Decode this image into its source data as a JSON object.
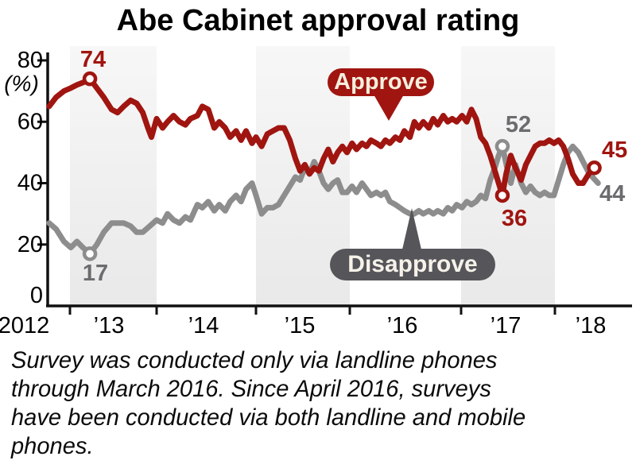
{
  "title": "Abe Cabinet approval rating",
  "y_axis": {
    "unit_label": "(%)",
    "tick_values": [
      80,
      60,
      40,
      20,
      0
    ]
  },
  "x_axis": {
    "labels": [
      "2012",
      "’13",
      "’14",
      "’15",
      "’16",
      "’17",
      "’18"
    ]
  },
  "footnote_lines": [
    "Survey was conducted only via landline phones",
    "through March 2016. Since April 2016, surveys",
    "have been conducted via both landline and mobile",
    "phones."
  ],
  "colors": {
    "approve": "#a01510",
    "disapprove": "#8d8d8d",
    "approve_annotation": "#a01510",
    "disapprove_annotation": "#6c6c70",
    "approve_balloon_bg": "#a01510",
    "approve_balloon_text": "#f6efdd",
    "disapprove_balloon_bg": "#55555a",
    "disapprove_balloon_text": "#f6f2e9",
    "axis": "#111111",
    "band_top": "#f7f7f7",
    "band_bottom": "#e9e9e9"
  },
  "chart_data": {
    "type": "line",
    "x_unit": "year",
    "y_unit": "percent",
    "ylim": [
      0,
      80
    ],
    "xlim": [
      2012.7,
      2018.6
    ],
    "grid": false,
    "shaded_year_bands": [
      [
        2013,
        2014
      ],
      [
        2015,
        2016
      ],
      [
        2017,
        2018
      ]
    ],
    "series": [
      {
        "name": "Approve",
        "color_key": "approve",
        "points": [
          [
            2012.76,
            65
          ],
          [
            2012.84,
            68
          ],
          [
            2012.93,
            70
          ],
          [
            2013.01,
            71
          ],
          [
            2013.08,
            72
          ],
          [
            2013.17,
            73
          ],
          [
            2013.23,
            74
          ],
          [
            2013.31,
            71
          ],
          [
            2013.39,
            68
          ],
          [
            2013.48,
            64
          ],
          [
            2013.55,
            63
          ],
          [
            2013.62,
            65
          ],
          [
            2013.7,
            67
          ],
          [
            2013.77,
            66
          ],
          [
            2013.84,
            63
          ],
          [
            2013.9,
            58
          ],
          [
            2013.94,
            55
          ],
          [
            2014.0,
            61
          ],
          [
            2014.06,
            58
          ],
          [
            2014.11,
            60
          ],
          [
            2014.17,
            62
          ],
          [
            2014.23,
            60
          ],
          [
            2014.29,
            59
          ],
          [
            2014.34,
            61
          ],
          [
            2014.41,
            62
          ],
          [
            2014.46,
            65
          ],
          [
            2014.52,
            64
          ],
          [
            2014.58,
            58
          ],
          [
            2014.63,
            60
          ],
          [
            2014.69,
            58
          ],
          [
            2014.74,
            55
          ],
          [
            2014.8,
            57
          ],
          [
            2014.85,
            54
          ],
          [
            2014.9,
            57
          ],
          [
            2014.96,
            53
          ],
          [
            2015.0,
            55
          ],
          [
            2015.06,
            52
          ],
          [
            2015.12,
            56
          ],
          [
            2015.18,
            57
          ],
          [
            2015.24,
            58
          ],
          [
            2015.3,
            58
          ],
          [
            2015.36,
            54
          ],
          [
            2015.42,
            48
          ],
          [
            2015.47,
            44
          ],
          [
            2015.52,
            46
          ],
          [
            2015.57,
            43
          ],
          [
            2015.62,
            45
          ],
          [
            2015.67,
            44
          ],
          [
            2015.72,
            48
          ],
          [
            2015.77,
            51
          ],
          [
            2015.82,
            47
          ],
          [
            2015.87,
            50
          ],
          [
            2015.92,
            52
          ],
          [
            2015.97,
            50
          ],
          [
            2016.02,
            53
          ],
          [
            2016.06,
            51
          ],
          [
            2016.11,
            53
          ],
          [
            2016.15,
            52
          ],
          [
            2016.19,
            54
          ],
          [
            2016.24,
            53
          ],
          [
            2016.28,
            52
          ],
          [
            2016.32,
            54
          ],
          [
            2016.36,
            53
          ],
          [
            2016.41,
            55
          ],
          [
            2016.45,
            54
          ],
          [
            2016.49,
            57
          ],
          [
            2016.54,
            55
          ],
          [
            2016.58,
            60
          ],
          [
            2016.62,
            58
          ],
          [
            2016.66,
            60
          ],
          [
            2016.71,
            58
          ],
          [
            2016.75,
            61
          ],
          [
            2016.79,
            59
          ],
          [
            2016.84,
            62
          ],
          [
            2016.88,
            60
          ],
          [
            2016.92,
            61
          ],
          [
            2016.96,
            60
          ],
          [
            2017.01,
            62
          ],
          [
            2017.06,
            60
          ],
          [
            2017.11,
            64
          ],
          [
            2017.16,
            61
          ],
          [
            2017.21,
            55
          ],
          [
            2017.26,
            53
          ],
          [
            2017.31,
            49
          ],
          [
            2017.36,
            44
          ],
          [
            2017.4,
            40
          ],
          [
            2017.44,
            36
          ],
          [
            2017.48,
            43
          ],
          [
            2017.53,
            49
          ],
          [
            2017.58,
            45
          ],
          [
            2017.64,
            41
          ],
          [
            2017.69,
            46
          ],
          [
            2017.74,
            49
          ],
          [
            2017.79,
            52
          ],
          [
            2017.84,
            53
          ],
          [
            2017.89,
            53
          ],
          [
            2017.94,
            54
          ],
          [
            2017.99,
            53
          ],
          [
            2018.04,
            54
          ],
          [
            2018.09,
            52
          ],
          [
            2018.14,
            48
          ],
          [
            2018.19,
            43
          ],
          [
            2018.25,
            40
          ],
          [
            2018.3,
            40
          ],
          [
            2018.36,
            43
          ],
          [
            2018.42,
            45
          ]
        ]
      },
      {
        "name": "Disapprove",
        "color_key": "disapprove",
        "points": [
          [
            2012.76,
            27
          ],
          [
            2012.84,
            25
          ],
          [
            2012.93,
            21
          ],
          [
            2013.01,
            19
          ],
          [
            2013.08,
            21
          ],
          [
            2013.15,
            19
          ],
          [
            2013.23,
            17
          ],
          [
            2013.31,
            20
          ],
          [
            2013.39,
            24
          ],
          [
            2013.48,
            27
          ],
          [
            2013.55,
            27
          ],
          [
            2013.62,
            27
          ],
          [
            2013.7,
            26
          ],
          [
            2013.77,
            24
          ],
          [
            2013.84,
            24
          ],
          [
            2013.92,
            26
          ],
          [
            2014.0,
            28
          ],
          [
            2014.06,
            27
          ],
          [
            2014.11,
            30
          ],
          [
            2014.17,
            28
          ],
          [
            2014.23,
            27
          ],
          [
            2014.29,
            29
          ],
          [
            2014.34,
            28
          ],
          [
            2014.41,
            33
          ],
          [
            2014.46,
            32
          ],
          [
            2014.52,
            34
          ],
          [
            2014.58,
            31
          ],
          [
            2014.63,
            33
          ],
          [
            2014.69,
            31
          ],
          [
            2014.74,
            34
          ],
          [
            2014.8,
            36
          ],
          [
            2014.85,
            34
          ],
          [
            2014.9,
            38
          ],
          [
            2014.96,
            40
          ],
          [
            2015.0,
            36
          ],
          [
            2015.06,
            30
          ],
          [
            2015.12,
            32
          ],
          [
            2015.18,
            32
          ],
          [
            2015.24,
            33
          ],
          [
            2015.3,
            36
          ],
          [
            2015.36,
            39
          ],
          [
            2015.42,
            42
          ],
          [
            2015.47,
            41
          ],
          [
            2015.52,
            45
          ],
          [
            2015.57,
            43
          ],
          [
            2015.62,
            47
          ],
          [
            2015.67,
            44
          ],
          [
            2015.72,
            40
          ],
          [
            2015.77,
            38
          ],
          [
            2015.82,
            40
          ],
          [
            2015.87,
            41
          ],
          [
            2015.92,
            37
          ],
          [
            2015.97,
            37
          ],
          [
            2016.02,
            39
          ],
          [
            2016.06,
            37
          ],
          [
            2016.11,
            40
          ],
          [
            2016.15,
            38
          ],
          [
            2016.19,
            36
          ],
          [
            2016.24,
            37
          ],
          [
            2016.28,
            36
          ],
          [
            2016.32,
            37
          ],
          [
            2016.36,
            34
          ],
          [
            2016.41,
            33
          ],
          [
            2016.45,
            32
          ],
          [
            2016.49,
            31
          ],
          [
            2016.54,
            30
          ],
          [
            2016.58,
            30
          ],
          [
            2016.62,
            31
          ],
          [
            2016.66,
            30
          ],
          [
            2016.71,
            31
          ],
          [
            2016.75,
            30
          ],
          [
            2016.79,
            31
          ],
          [
            2016.84,
            30
          ],
          [
            2016.88,
            32
          ],
          [
            2016.92,
            31
          ],
          [
            2016.96,
            33
          ],
          [
            2017.01,
            32
          ],
          [
            2017.06,
            34
          ],
          [
            2017.11,
            33
          ],
          [
            2017.16,
            34
          ],
          [
            2017.21,
            36
          ],
          [
            2017.26,
            35
          ],
          [
            2017.31,
            41
          ],
          [
            2017.36,
            45
          ],
          [
            2017.4,
            49
          ],
          [
            2017.44,
            52
          ],
          [
            2017.49,
            45
          ],
          [
            2017.53,
            40
          ],
          [
            2017.58,
            46
          ],
          [
            2017.64,
            40
          ],
          [
            2017.69,
            37
          ],
          [
            2017.74,
            39
          ],
          [
            2017.79,
            37
          ],
          [
            2017.84,
            36
          ],
          [
            2017.89,
            37
          ],
          [
            2017.94,
            36
          ],
          [
            2017.99,
            36
          ],
          [
            2018.04,
            41
          ],
          [
            2018.09,
            46
          ],
          [
            2018.14,
            50
          ],
          [
            2018.19,
            52
          ],
          [
            2018.25,
            50
          ],
          [
            2018.3,
            47
          ],
          [
            2018.35,
            44
          ],
          [
            2018.4,
            42
          ],
          [
            2018.46,
            40
          ]
        ]
      }
    ],
    "annotations": [
      {
        "series": "Approve",
        "t": 2013.23,
        "value": 74,
        "label": "74",
        "marker": true
      },
      {
        "series": "Disapprove",
        "t": 2013.23,
        "value": 17,
        "label": "17",
        "marker": true
      },
      {
        "series": "Disapprove",
        "t": 2017.44,
        "value": 52,
        "label": "52",
        "marker": true
      },
      {
        "series": "Approve",
        "t": 2017.44,
        "value": 36,
        "label": "36",
        "marker": true
      },
      {
        "series": "Approve",
        "t": 2018.42,
        "value": 45,
        "label": "45",
        "marker": true
      },
      {
        "series": "Disapprove",
        "t": 2018.35,
        "value": 44,
        "label": "44",
        "marker": false
      }
    ]
  }
}
